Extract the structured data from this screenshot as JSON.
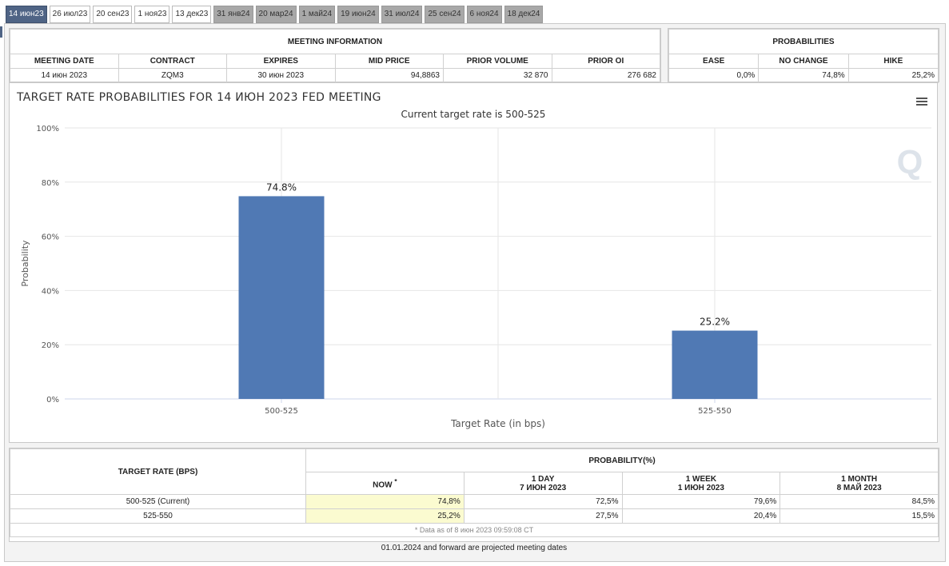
{
  "tabs": [
    {
      "label": "14 июн23",
      "state": "active"
    },
    {
      "label": "26 июл23",
      "state": "normal"
    },
    {
      "label": "20 сен23",
      "state": "normal"
    },
    {
      "label": "1 ноя23",
      "state": "normal"
    },
    {
      "label": "13 дек23",
      "state": "normal"
    },
    {
      "label": "31 янв24",
      "state": "projected"
    },
    {
      "label": "20 мар24",
      "state": "projected"
    },
    {
      "label": "1 май24",
      "state": "projected"
    },
    {
      "label": "19 июн24",
      "state": "projected"
    },
    {
      "label": "31 июл24",
      "state": "projected"
    },
    {
      "label": "25 сен24",
      "state": "projected"
    },
    {
      "label": "6 ноя24",
      "state": "projected"
    },
    {
      "label": "18 дек24",
      "state": "projected"
    }
  ],
  "meeting_info": {
    "title": "MEETING INFORMATION",
    "headers": [
      "MEETING DATE",
      "CONTRACT",
      "EXPIRES",
      "MID PRICE",
      "PRIOR VOLUME",
      "PRIOR OI"
    ],
    "values": [
      "14 июн 2023",
      "ZQM3",
      "30 июн 2023",
      "94,8863",
      "32 870",
      "276 682"
    ]
  },
  "probabilities": {
    "title": "PROBABILITIES",
    "headers": [
      "EASE",
      "NO CHANGE",
      "HIKE"
    ],
    "values": [
      "0,0%",
      "74,8%",
      "25,2%"
    ]
  },
  "chart_data": {
    "type": "bar",
    "title": "TARGET RATE PROBABILITIES FOR 14 ИЮН 2023 FED MEETING",
    "subtitle": "Current target rate is 500-525",
    "categories": [
      "500-525",
      "525-550"
    ],
    "values": [
      74.8,
      25.2
    ],
    "data_labels": [
      "74.8%",
      "25.2%"
    ],
    "xlabel": "Target Rate (in bps)",
    "ylabel": "Probability",
    "ylim": [
      0,
      100
    ],
    "yticks": [
      0,
      20,
      40,
      60,
      80,
      100
    ],
    "ytick_labels": [
      "0%",
      "20%",
      "40%",
      "60%",
      "80%",
      "100%"
    ],
    "bar_color": "#5079b4",
    "grid": true,
    "watermark": "Q"
  },
  "prob_table": {
    "rate_header": "TARGET RATE (BPS)",
    "group_header": "PROBABILITY(%)",
    "columns": [
      {
        "line1": "NOW",
        "line2": "*"
      },
      {
        "line1": "1 DAY",
        "line2": "7 ИЮН 2023"
      },
      {
        "line1": "1 WEEK",
        "line2": "1 ИЮН 2023"
      },
      {
        "line1": "1 MONTH",
        "line2": "8 МАЙ 2023"
      }
    ],
    "rows": [
      {
        "rate": "500-525 (Current)",
        "values": [
          "74,8%",
          "72,5%",
          "79,6%",
          "84,5%"
        ]
      },
      {
        "rate": "525-550",
        "values": [
          "25,2%",
          "27,5%",
          "20,4%",
          "15,5%"
        ]
      }
    ],
    "note": "* Data as of 8 июн 2023 09:59:08 CT"
  },
  "footer_note": "01.01.2024 and forward are projected meeting dates",
  "colors": {
    "active_tab": "#4f6485",
    "projected_tab": "#a8a8a8",
    "now_cell": "#fbfbd0"
  }
}
